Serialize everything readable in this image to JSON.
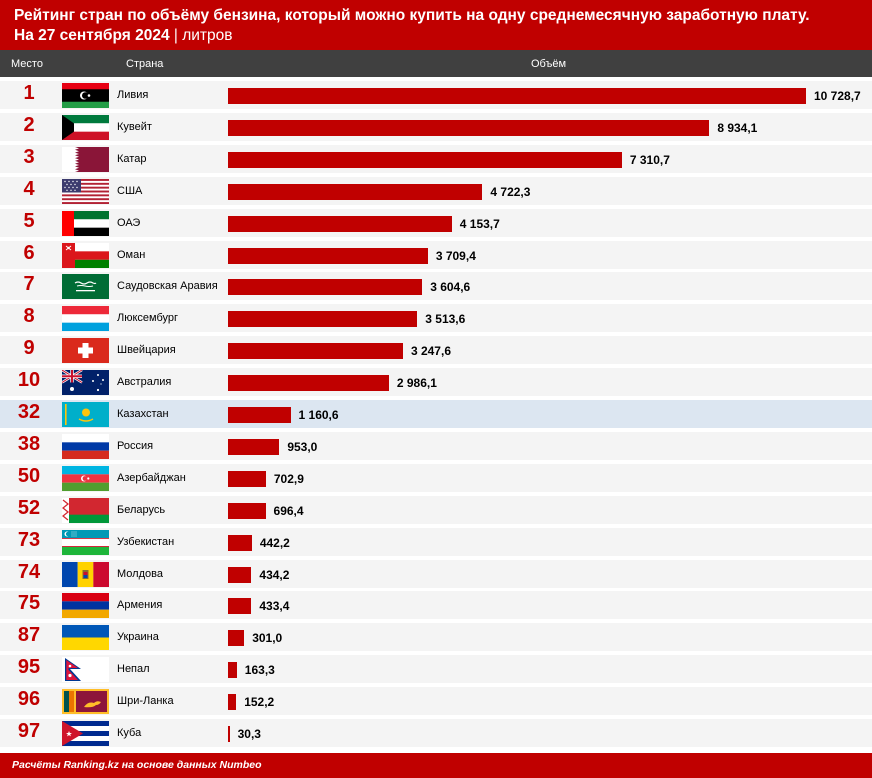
{
  "header": {
    "title": "Рейтинг стран по объёму бензина, который можно купить на одну среднемесячную заработную плату.",
    "date": "На 27 сентября 2024",
    "separator": "|",
    "unit": "литров"
  },
  "columns": {
    "place": "Место",
    "country": "Страна",
    "volume": "Объём"
  },
  "chart_data": {
    "type": "bar",
    "orientation": "horizontal",
    "categories": [
      "Ливия",
      "Кувейт",
      "Катар",
      "США",
      "ОАЭ",
      "Оман",
      "Саудовская Аравия",
      "Люксембург",
      "Швейцария",
      "Австралия",
      "Казахстан",
      "Россия",
      "Азербайджан",
      "Беларусь",
      "Узбекистан",
      "Молдова",
      "Армения",
      "Украина",
      "Непал",
      "Шри-Ланка",
      "Куба"
    ],
    "ranks": [
      "1",
      "2",
      "3",
      "4",
      "5",
      "6",
      "7",
      "8",
      "9",
      "10",
      "32",
      "38",
      "50",
      "52",
      "73",
      "74",
      "75",
      "87",
      "95",
      "96",
      "97"
    ],
    "values": [
      10728.7,
      8934.1,
      7310.7,
      4722.3,
      4153.7,
      3709.4,
      3604.6,
      3513.6,
      3247.6,
      2986.1,
      1160.6,
      953.0,
      702.9,
      696.4,
      442.2,
      434.2,
      433.4,
      301.0,
      163.3,
      152.2,
      30.3
    ],
    "value_labels": [
      "10 728,7",
      "8 934,1",
      "7 310,7",
      "4 722,3",
      "4 153,7",
      "3 709,4",
      "3 604,6",
      "3 513,6",
      "3 247,6",
      "2 986,1",
      "1 160,6",
      "953,0",
      "702,9",
      "696,4",
      "442,2",
      "434,2",
      "433,4",
      "301,0",
      "163,3",
      "152,2",
      "30,3"
    ],
    "flag_icons": [
      "libya-flag-icon",
      "kuwait-flag-icon",
      "qatar-flag-icon",
      "usa-flag-icon",
      "uae-flag-icon",
      "oman-flag-icon",
      "saudi-arabia-flag-icon",
      "luxembourg-flag-icon",
      "switzerland-flag-icon",
      "australia-flag-icon",
      "kazakhstan-flag-icon",
      "russia-flag-icon",
      "azerbaijan-flag-icon",
      "belarus-flag-icon",
      "uzbekistan-flag-icon",
      "moldova-flag-icon",
      "armenia-flag-icon",
      "ukraine-flag-icon",
      "nepal-flag-icon",
      "sri-lanka-flag-icon",
      "cuba-flag-icon"
    ],
    "highlighted_category": "Казахстан",
    "xlim": [
      0,
      10728.7
    ],
    "grid": false,
    "bar_color": "#c00000",
    "highlight_row_color": "#dce6f1"
  },
  "footer": {
    "source": "Расчёты Ranking.kz на основе данных Numbeo"
  },
  "colors": {
    "brand_red": "#c00000",
    "column_header": "#404040",
    "row_bg": "#f4f4f4"
  }
}
